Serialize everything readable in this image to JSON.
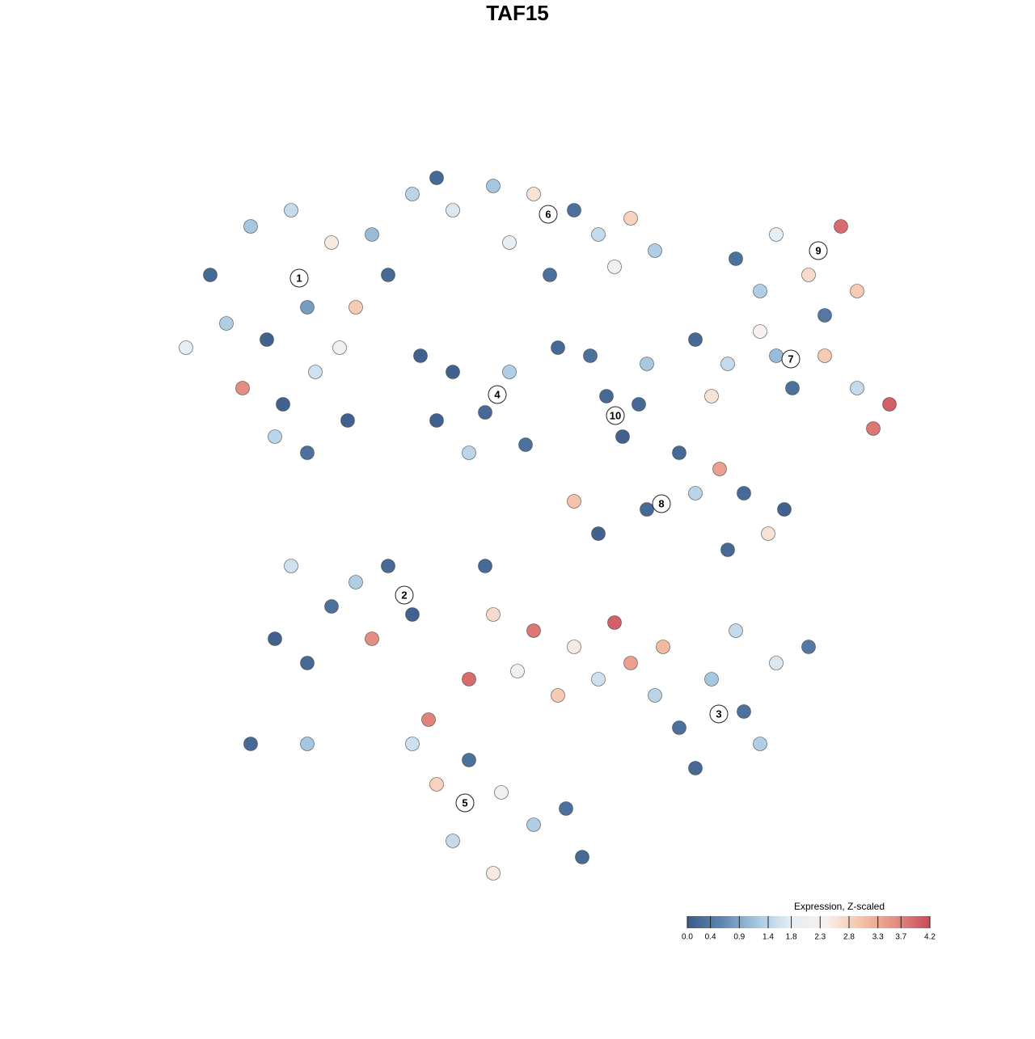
{
  "chart_data": {
    "type": "scatter",
    "title": "TAF15",
    "xlim": [
      -50,
      50
    ],
    "ylim": [
      -50,
      50
    ],
    "colorbar_title": "Expression, Z-scaled",
    "clim": [
      0,
      4.2
    ],
    "cticks": [
      {
        "value": 0,
        "label": "0.0"
      },
      0.4,
      0.9,
      1.4,
      1.8,
      2.3,
      2.8,
      3.3,
      3.7,
      4.2
    ],
    "colorscale": [
      "#3b5b87",
      "#5f86b3",
      "#a5c8e0",
      "#e4eef5",
      "#f8f1ed",
      "#f6c3a8",
      "#e68d82",
      "#c84b5a"
    ],
    "clusters": [
      {
        "label": "1",
        "x": -29,
        "y": 29.6
      },
      {
        "label": "2",
        "x": -16,
        "y": -9.6
      },
      {
        "label": "3",
        "x": 22.9,
        "y": -24.3
      },
      {
        "label": "4",
        "x": -4.5,
        "y": 15.2
      },
      {
        "label": "5",
        "x": -8.5,
        "y": -35.3
      },
      {
        "label": "6",
        "x": 1.8,
        "y": 37.5
      },
      {
        "label": "7",
        "x": 31.8,
        "y": 19.6
      },
      {
        "label": "8",
        "x": 15.8,
        "y": 1.7
      },
      {
        "label": "9",
        "x": 35.2,
        "y": 33
      },
      {
        "label": "10",
        "x": 10.1,
        "y": 12.6
      }
    ],
    "x": [
      -40,
      -35,
      -30,
      -25,
      -28,
      -33,
      -38,
      -43,
      -31,
      -27,
      -22,
      -20,
      -15,
      -10,
      -5,
      0,
      5,
      8,
      12,
      15,
      -18,
      -23,
      -28,
      -32,
      -36,
      -24,
      -12,
      2,
      -3,
      10,
      -10,
      -6,
      -3,
      -12,
      -1,
      3,
      -8,
      -14,
      9,
      11,
      13,
      7,
      14,
      25,
      30,
      34,
      38,
      40,
      28,
      36,
      20,
      24,
      28,
      32,
      36,
      40,
      44,
      42,
      22,
      30,
      18,
      20,
      23,
      26,
      29,
      31,
      14,
      8,
      5,
      24,
      -32,
      -28,
      -25,
      -22,
      -18,
      -15,
      -30,
      -20,
      -35,
      -28,
      -5,
      0,
      5,
      10,
      -8,
      -2,
      3,
      8,
      12,
      -6,
      15,
      18,
      22,
      26,
      30,
      34,
      20,
      28,
      16,
      25,
      -15,
      -12,
      -8,
      -4,
      0,
      4,
      -10,
      -5,
      6,
      -13
    ],
    "y": [
      30,
      36,
      38,
      34,
      26,
      22,
      24,
      21,
      14,
      18,
      26,
      35,
      40,
      38,
      41,
      40,
      38,
      35,
      37,
      33,
      30,
      12,
      8,
      10,
      16,
      21,
      42,
      30,
      34,
      31,
      18,
      13,
      18,
      12,
      9,
      21,
      8,
      20,
      15,
      10,
      14,
      20,
      19,
      32,
      35,
      30,
      36,
      28,
      28,
      25,
      22,
      19,
      23,
      16,
      20,
      16,
      14,
      11,
      15,
      20,
      8,
      3,
      6,
      3,
      -2,
      1,
      1,
      -2,
      2,
      -4,
      -15,
      -18,
      -11,
      -8,
      -6,
      -12,
      -6,
      -15,
      -28,
      -28,
      -12,
      -14,
      -16,
      -13,
      -20,
      -19,
      -22,
      -20,
      -18,
      -6,
      -22,
      -26,
      -20,
      -24,
      -18,
      -16,
      -31,
      -28,
      -16,
      -14,
      -28,
      -33,
      -30,
      -34,
      -38,
      -36,
      -40,
      -44,
      -42,
      -25
    ],
    "values": [
      0.2,
      1.2,
      1.5,
      2.5,
      0.8,
      0.1,
      1.3,
      1.9,
      0.1,
      1.6,
      2.9,
      1.1,
      1.4,
      1.7,
      1.2,
      2.6,
      0.3,
      1.5,
      2.8,
      1.3,
      0.2,
      0.1,
      0.3,
      1.4,
      3.6,
      2.1,
      0.2,
      0.3,
      1.9,
      2.2,
      0.1,
      0.2,
      1.3,
      0.1,
      0.3,
      0.2,
      1.4,
      0.1,
      0.2,
      0.1,
      0.2,
      0.3,
      1.2,
      0.3,
      1.8,
      2.7,
      3.9,
      2.9,
      1.3,
      0.4,
      0.2,
      1.5,
      2.4,
      0.3,
      2.9,
      1.5,
      4.0,
      3.8,
      2.6,
      1.1,
      0.2,
      1.4,
      3.4,
      0.2,
      2.6,
      0.1,
      0.2,
      0.1,
      3.0,
      0.2,
      0.1,
      0.2,
      0.3,
      1.3,
      0.2,
      0.1,
      1.6,
      3.6,
      0.2,
      1.2,
      2.7,
      3.8,
      2.5,
      4.0,
      3.9,
      2.2,
      2.9,
      1.6,
      3.4,
      0.2,
      1.4,
      0.3,
      1.2,
      0.3,
      1.7,
      0.4,
      0.2,
      1.3,
      3.1,
      1.5,
      1.6,
      2.8,
      0.3,
      2.2,
      1.3,
      0.3,
      1.5,
      2.5,
      0.2,
      3.7
    ]
  }
}
